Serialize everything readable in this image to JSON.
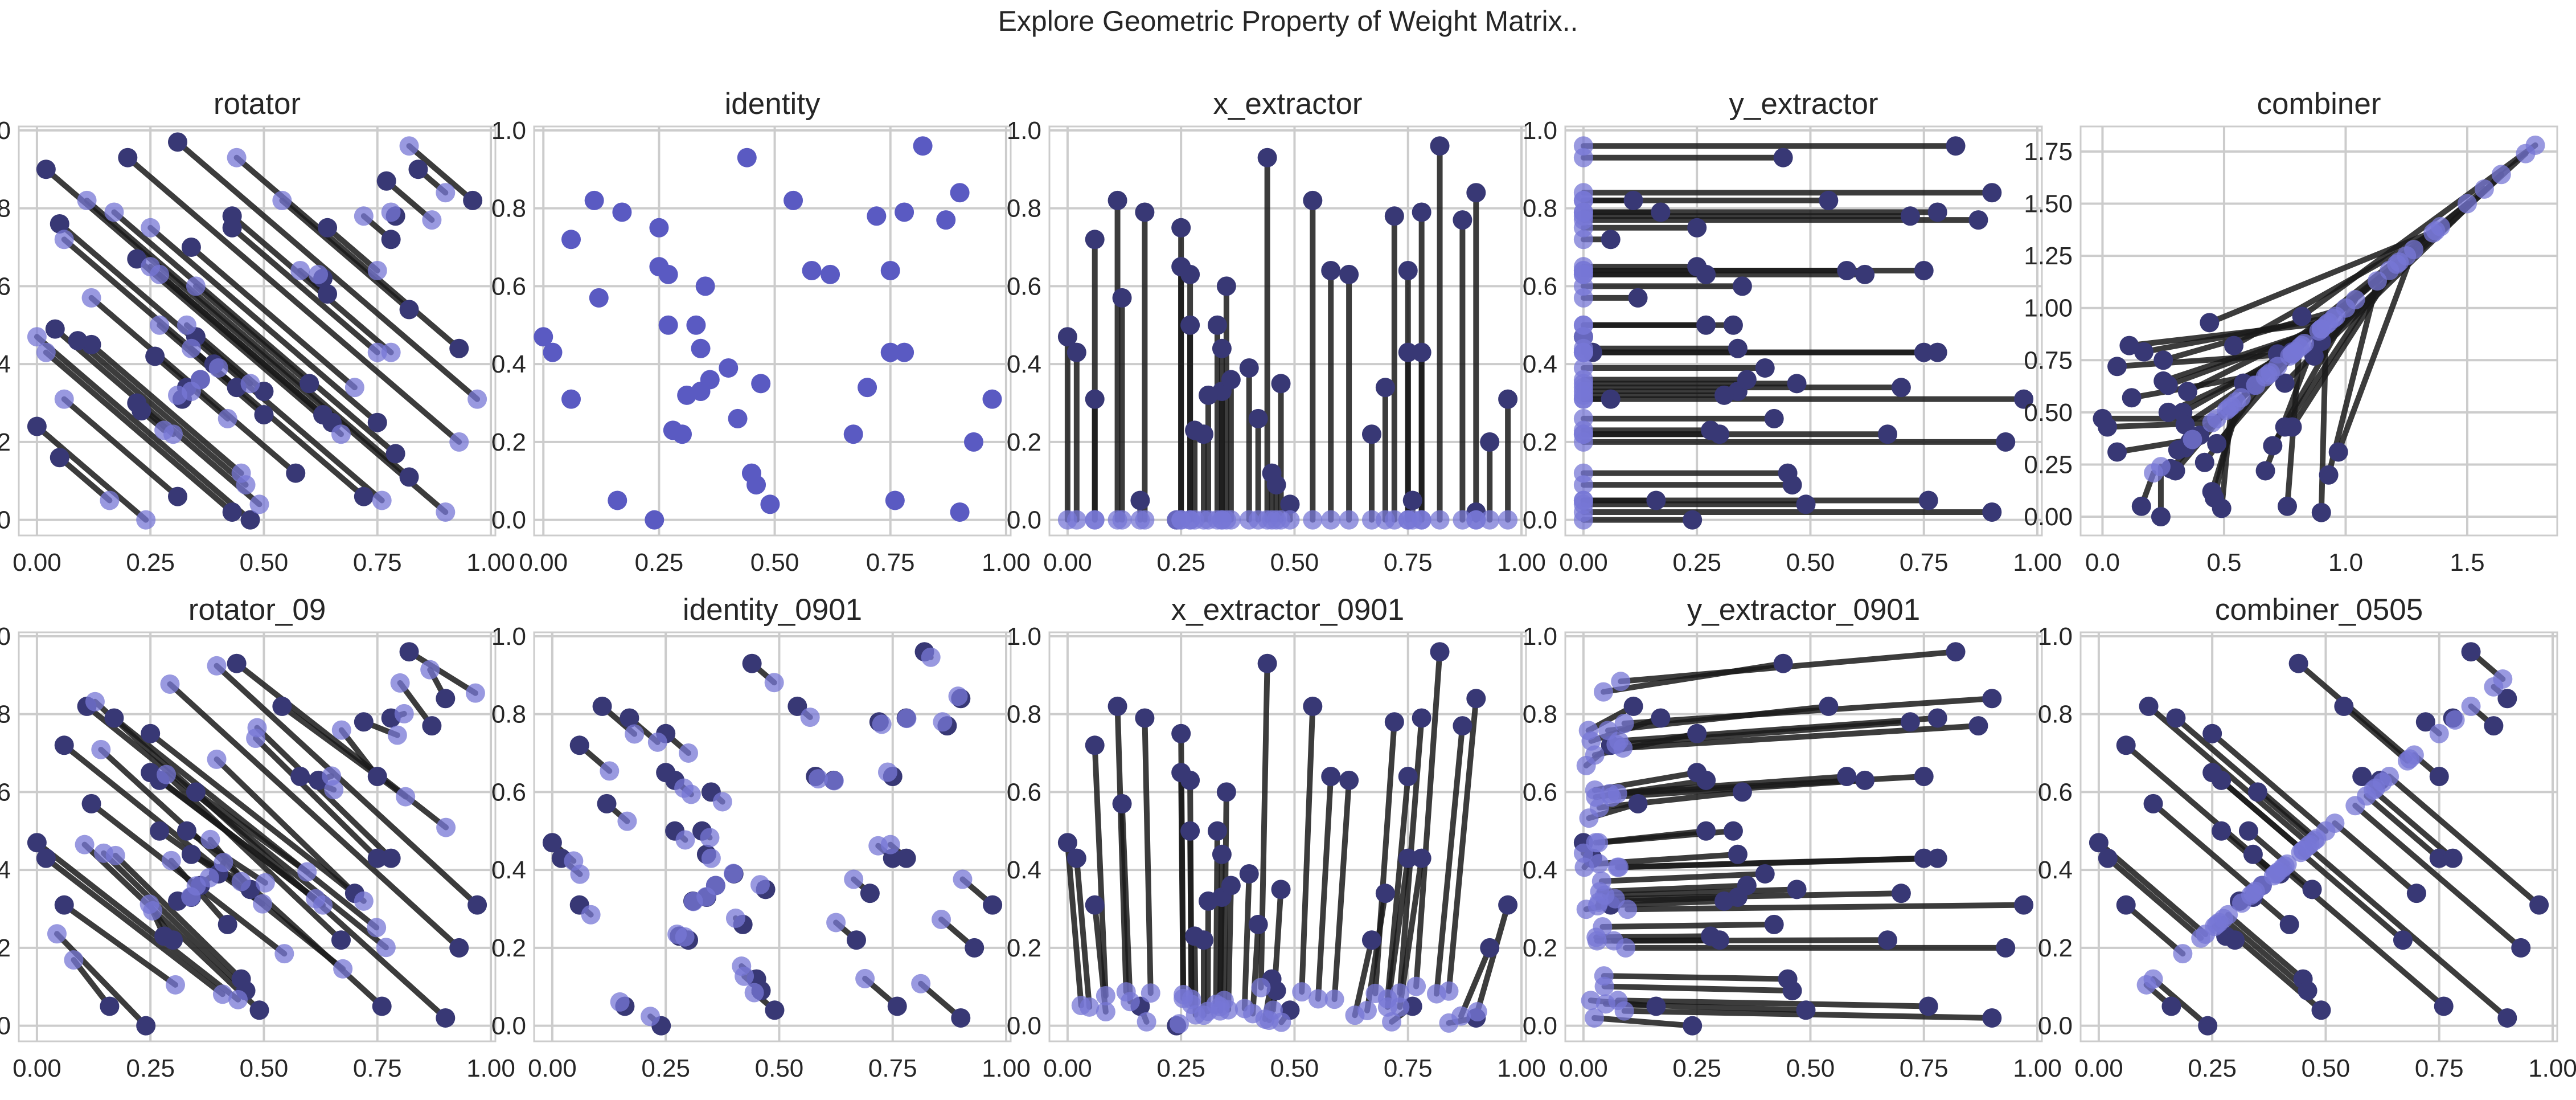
{
  "figure": {
    "title": "Explore Geometric Property of Weight Matrix.."
  },
  "colors": {
    "start_point": "#7777d6",
    "end_point": "#383875",
    "single_point": "#5a5ac2",
    "segment": "#1a1a1a",
    "grid": "#cccccc"
  },
  "chart_data": [
    {
      "type": "scatter",
      "title": "rotator",
      "transform": "rotator",
      "xlim": [
        -0.04,
        1.01
      ],
      "ylim": [
        -0.04,
        1.01
      ],
      "xticks": [
        "0.00",
        "0.25",
        "0.50",
        "0.75",
        "1.00"
      ],
      "yticks": [
        "0.0",
        "0.2",
        "0.4",
        "0.6",
        "0.8",
        "1.0"
      ],
      "grid": true
    },
    {
      "type": "scatter",
      "title": "identity",
      "transform": "identity",
      "xlim": [
        -0.02,
        1.01
      ],
      "ylim": [
        -0.04,
        1.01
      ],
      "xticks": [
        "0.00",
        "0.25",
        "0.50",
        "0.75",
        "1.00"
      ],
      "yticks": [
        "0.0",
        "0.2",
        "0.4",
        "0.6",
        "0.8",
        "1.0"
      ],
      "grid": true
    },
    {
      "type": "scatter",
      "title": "x_extractor",
      "transform": "x_extractor",
      "xlim": [
        -0.04,
        1.01
      ],
      "ylim": [
        -0.04,
        1.01
      ],
      "xticks": [
        "0.00",
        "0.25",
        "0.50",
        "0.75",
        "1.00"
      ],
      "yticks": [
        "0.0",
        "0.2",
        "0.4",
        "0.6",
        "0.8",
        "1.0"
      ],
      "grid": true
    },
    {
      "type": "scatter",
      "title": "y_extractor",
      "transform": "y_extractor",
      "xlim": [
        -0.04,
        1.01
      ],
      "ylim": [
        -0.04,
        1.01
      ],
      "xticks": [
        "0.00",
        "0.25",
        "0.50",
        "0.75",
        "1.00"
      ],
      "yticks": [
        "0.0",
        "0.2",
        "0.4",
        "0.6",
        "0.8",
        "1.0"
      ],
      "grid": true
    },
    {
      "type": "scatter",
      "title": "combiner",
      "transform": "combiner",
      "xlim": [
        -0.09,
        1.87
      ],
      "ylim": [
        -0.09,
        1.87
      ],
      "xticks": [
        "0.0",
        "0.5",
        "1.0",
        "1.5"
      ],
      "yticks": [
        "0.00",
        "0.25",
        "0.50",
        "0.75",
        "1.00",
        "1.25",
        "1.50",
        "1.75"
      ],
      "grid": true
    },
    {
      "type": "scatter",
      "title": "rotator_09",
      "transform": "rotator_09",
      "xlim": [
        -0.04,
        1.01
      ],
      "ylim": [
        -0.04,
        1.01
      ],
      "xticks": [
        "0.00",
        "0.25",
        "0.50",
        "0.75",
        "1.00"
      ],
      "yticks": [
        "0.0",
        "0.2",
        "0.4",
        "0.6",
        "0.8",
        "1.0"
      ],
      "grid": true
    },
    {
      "type": "scatter",
      "title": "identity_0901",
      "transform": "identity_0901",
      "xlim": [
        -0.04,
        1.01
      ],
      "ylim": [
        -0.04,
        1.01
      ],
      "xticks": [
        "0.00",
        "0.25",
        "0.50",
        "0.75",
        "1.00"
      ],
      "yticks": [
        "0.0",
        "0.2",
        "0.4",
        "0.6",
        "0.8",
        "1.0"
      ],
      "grid": true
    },
    {
      "type": "scatter",
      "title": "x_extractor_0901",
      "transform": "x_extractor_0901",
      "xlim": [
        -0.04,
        1.01
      ],
      "ylim": [
        -0.04,
        1.01
      ],
      "xticks": [
        "0.00",
        "0.25",
        "0.50",
        "0.75",
        "1.00"
      ],
      "yticks": [
        "0.0",
        "0.2",
        "0.4",
        "0.6",
        "0.8",
        "1.0"
      ],
      "grid": true
    },
    {
      "type": "scatter",
      "title": "y_extractor_0901",
      "transform": "y_extractor_0901",
      "xlim": [
        -0.04,
        1.01
      ],
      "ylim": [
        -0.04,
        1.01
      ],
      "xticks": [
        "0.00",
        "0.25",
        "0.50",
        "0.75",
        "1.00"
      ],
      "yticks": [
        "0.0",
        "0.2",
        "0.4",
        "0.6",
        "0.8",
        "1.0"
      ],
      "grid": true
    },
    {
      "type": "scatter",
      "title": "combiner_0505",
      "transform": "combiner_0505",
      "xlim": [
        -0.04,
        1.01
      ],
      "ylim": [
        -0.04,
        1.01
      ],
      "xticks": [
        "0.00",
        "0.25",
        "0.50",
        "0.75",
        "1.00"
      ],
      "yticks": [
        "0.0",
        "0.2",
        "0.4",
        "0.6",
        "0.8",
        "1.0"
      ],
      "grid": true
    }
  ],
  "points": [
    [
      0.44,
      0.93
    ],
    [
      0.82,
      0.96
    ],
    [
      0.9,
      0.84
    ],
    [
      0.78,
      0.79
    ],
    [
      0.87,
      0.77
    ],
    [
      0.11,
      0.82
    ],
    [
      0.17,
      0.79
    ],
    [
      0.06,
      0.72
    ],
    [
      0.54,
      0.82
    ],
    [
      0.25,
      0.75
    ],
    [
      0.72,
      0.78
    ],
    [
      0.62,
      0.63
    ],
    [
      0.75,
      0.64
    ],
    [
      0.58,
      0.64
    ],
    [
      0.27,
      0.63
    ],
    [
      0.25,
      0.65
    ],
    [
      0.35,
      0.6
    ],
    [
      0.12,
      0.57
    ],
    [
      0.27,
      0.5
    ],
    [
      0.33,
      0.5
    ],
    [
      0.34,
      0.44
    ],
    [
      0.4,
      0.39
    ],
    [
      0.47,
      0.35
    ],
    [
      0.34,
      0.33
    ],
    [
      0.31,
      0.32
    ],
    [
      0.36,
      0.36
    ],
    [
      0.75,
      0.43
    ],
    [
      0.78,
      0.43
    ],
    [
      0.7,
      0.34
    ],
    [
      0.97,
      0.31
    ],
    [
      0.0,
      0.47
    ],
    [
      0.02,
      0.43
    ],
    [
      0.06,
      0.31
    ],
    [
      0.28,
      0.23
    ],
    [
      0.3,
      0.22
    ],
    [
      0.93,
      0.2
    ],
    [
      0.42,
      0.26
    ],
    [
      0.45,
      0.12
    ],
    [
      0.46,
      0.09
    ],
    [
      0.67,
      0.22
    ],
    [
      0.49,
      0.04
    ],
    [
      0.16,
      0.05
    ],
    [
      0.76,
      0.05
    ],
    [
      0.24,
      0.0
    ],
    [
      0.9,
      0.02
    ]
  ]
}
